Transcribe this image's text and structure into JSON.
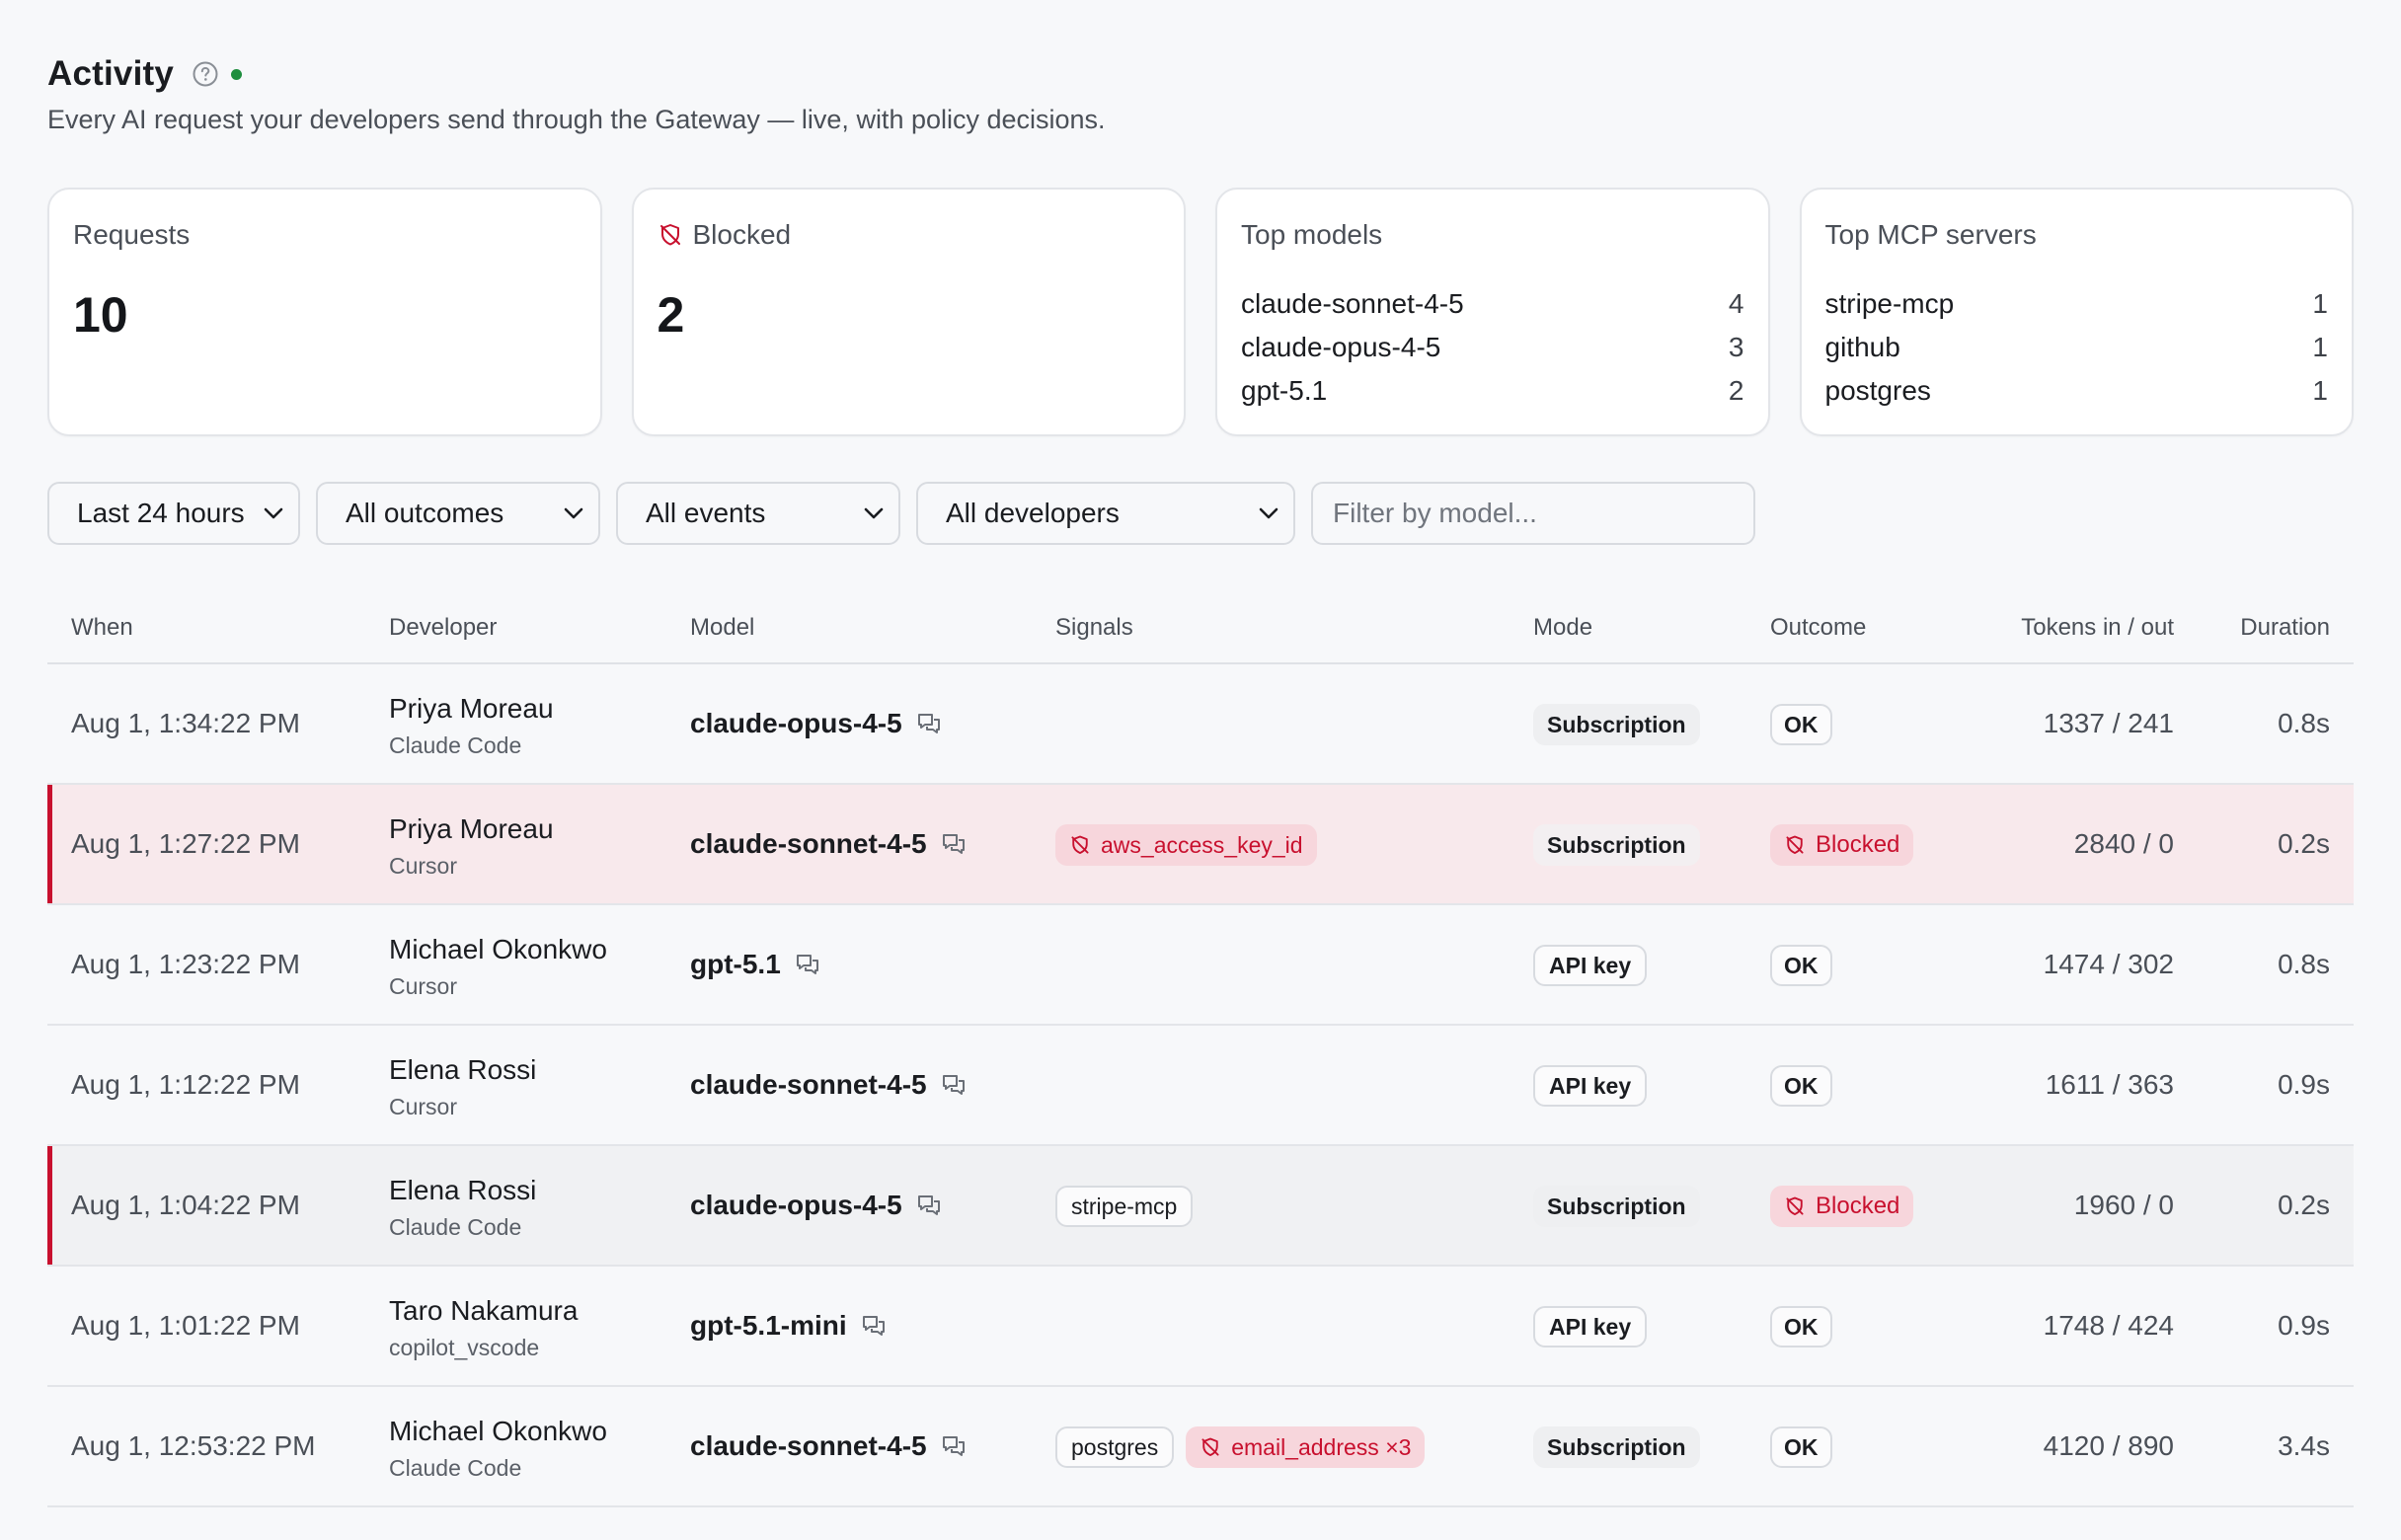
{
  "header": {
    "title": "Activity",
    "subtitle": "Every AI request your developers send through the Gateway — live, with policy decisions."
  },
  "colors": {
    "live": "#1e8e3e",
    "danger": "#c8102e",
    "danger_bg": "#f7d6dc"
  },
  "cards": {
    "requests": {
      "label": "Requests",
      "value": "10"
    },
    "blocked": {
      "label": "Blocked",
      "value": "2"
    },
    "top_models": {
      "label": "Top models",
      "items": [
        {
          "name": "claude-sonnet-4-5",
          "count": "4"
        },
        {
          "name": "claude-opus-4-5",
          "count": "3"
        },
        {
          "name": "gpt-5.1",
          "count": "2"
        }
      ]
    },
    "top_mcp": {
      "label": "Top MCP servers",
      "items": [
        {
          "name": "stripe-mcp",
          "count": "1"
        },
        {
          "name": "github",
          "count": "1"
        },
        {
          "name": "postgres",
          "count": "1"
        }
      ]
    }
  },
  "filters": {
    "time": "Last 24 hours",
    "outcome": "All outcomes",
    "events": "All events",
    "developers": "All developers",
    "model_placeholder": "Filter by model..."
  },
  "table": {
    "headers": [
      "When",
      "Developer",
      "Model",
      "Signals",
      "Mode",
      "Outcome",
      "Tokens in / out",
      "Duration"
    ],
    "rows": [
      {
        "when": "Aug 1, 1:34:22 PM",
        "dev": "Priya Moreau",
        "tool": "Claude Code",
        "model": "claude-opus-4-5",
        "signals": [],
        "mode": "Subscription",
        "outcome": "OK",
        "tokens": "1337 / 241",
        "duration": "0.8s"
      },
      {
        "when": "Aug 1, 1:27:22 PM",
        "dev": "Priya Moreau",
        "tool": "Cursor",
        "model": "claude-sonnet-4-5",
        "signals": [
          {
            "text": "aws_access_key_id",
            "kind": "danger"
          }
        ],
        "mode": "Subscription",
        "outcome": "Blocked",
        "tokens": "2840 / 0",
        "duration": "0.2s"
      },
      {
        "when": "Aug 1, 1:23:22 PM",
        "dev": "Michael Okonkwo",
        "tool": "Cursor",
        "model": "gpt-5.1",
        "signals": [],
        "mode": "API key",
        "outcome": "OK",
        "tokens": "1474 / 302",
        "duration": "0.8s"
      },
      {
        "when": "Aug 1, 1:12:22 PM",
        "dev": "Elena Rossi",
        "tool": "Cursor",
        "model": "claude-sonnet-4-5",
        "signals": [],
        "mode": "API key",
        "outcome": "OK",
        "tokens": "1611 / 363",
        "duration": "0.9s"
      },
      {
        "when": "Aug 1, 1:04:22 PM",
        "dev": "Elena Rossi",
        "tool": "Claude Code",
        "model": "claude-opus-4-5",
        "signals": [
          {
            "text": "stripe-mcp",
            "kind": "neutral"
          }
        ],
        "mode": "Subscription",
        "outcome": "Blocked",
        "tokens": "1960 / 0",
        "duration": "0.2s"
      },
      {
        "when": "Aug 1, 1:01:22 PM",
        "dev": "Taro Nakamura",
        "tool": "copilot_vscode",
        "model": "gpt-5.1-mini",
        "signals": [],
        "mode": "API key",
        "outcome": "OK",
        "tokens": "1748 / 424",
        "duration": "0.9s"
      },
      {
        "when": "Aug 1, 12:53:22 PM",
        "dev": "Michael Okonkwo",
        "tool": "Claude Code",
        "model": "claude-sonnet-4-5",
        "signals": [
          {
            "text": "postgres",
            "kind": "neutral"
          },
          {
            "text": "email_address ×3",
            "kind": "danger"
          }
        ],
        "mode": "Subscription",
        "outcome": "OK",
        "tokens": "4120 / 890",
        "duration": "3.4s"
      }
    ]
  }
}
